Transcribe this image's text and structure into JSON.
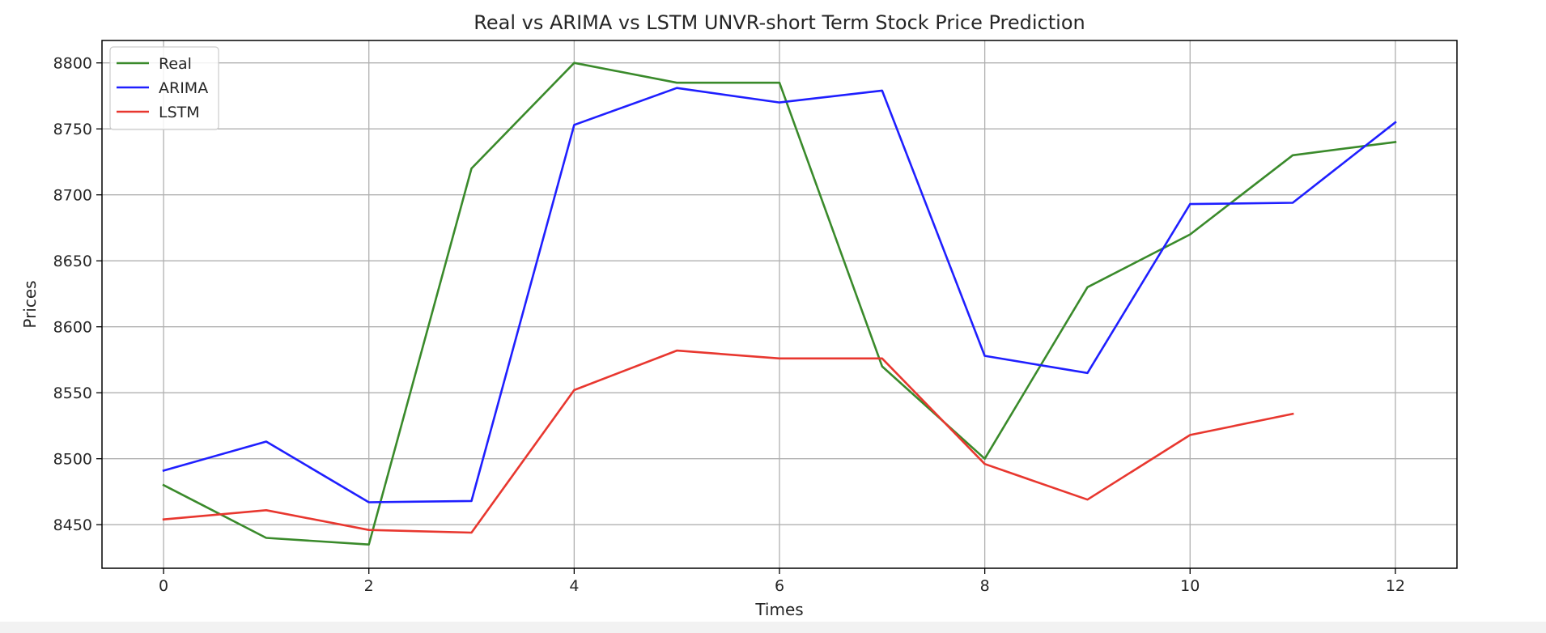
{
  "chart_data": {
    "type": "line",
    "title": "Real vs ARIMA vs LSTM UNVR-short Term Stock Price Prediction",
    "xlabel": "Times",
    "ylabel": "Prices",
    "xlim": [
      -0.6,
      12.6
    ],
    "ylim": [
      8417,
      8817
    ],
    "xticks": [
      0,
      2,
      4,
      6,
      8,
      10,
      12
    ],
    "yticks": [
      8450,
      8500,
      8550,
      8600,
      8650,
      8700,
      8750,
      8800
    ],
    "grid": true,
    "legend_position": "top-left",
    "series": [
      {
        "name": "Real",
        "color": "#3a8a2b",
        "x": [
          0,
          1,
          2,
          3,
          4,
          5,
          6,
          7,
          8,
          9,
          10,
          11,
          12
        ],
        "y": [
          8480,
          8440,
          8435,
          8720,
          8800,
          8785,
          8785,
          8570,
          8500,
          8630,
          8670,
          8730,
          8740
        ]
      },
      {
        "name": "ARIMA",
        "color": "#1f1fff",
        "x": [
          0,
          1,
          2,
          3,
          4,
          5,
          6,
          7,
          8,
          9,
          10,
          11,
          12
        ],
        "y": [
          8491,
          8513,
          8467,
          8468,
          8753,
          8781,
          8770,
          8779,
          8578,
          8565,
          8693,
          8694,
          8755
        ]
      },
      {
        "name": "LSTM",
        "color": "#e8372f",
        "x": [
          0,
          1,
          2,
          3,
          4,
          5,
          6,
          7,
          8,
          9,
          10,
          11
        ],
        "y": [
          8454,
          8461,
          8446,
          8444,
          8552,
          8582,
          8576,
          8576,
          8496,
          8469,
          8518,
          8534
        ]
      }
    ]
  }
}
